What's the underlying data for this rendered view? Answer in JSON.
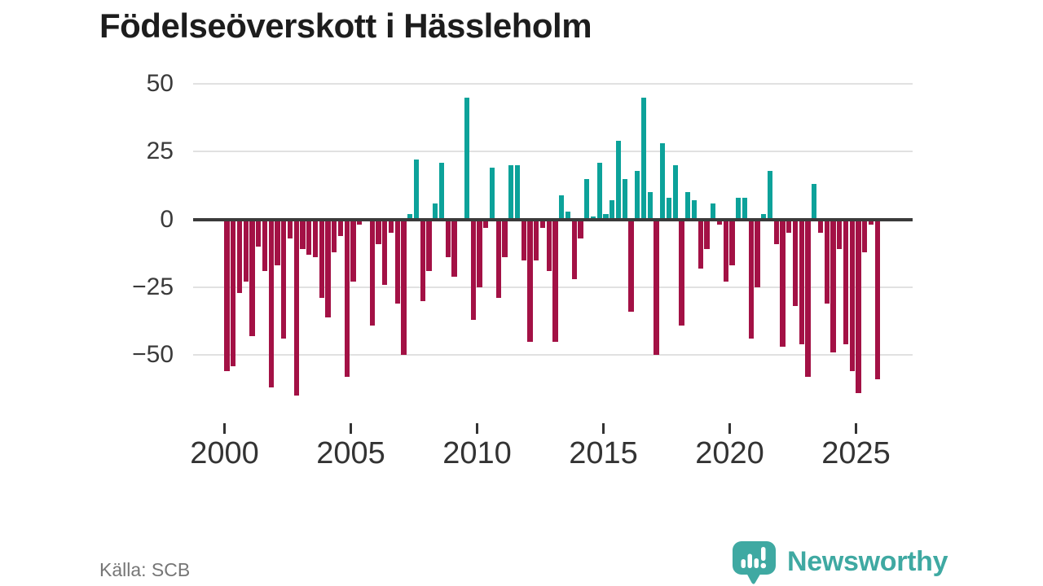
{
  "title": "Födelseöverskott i Hässleholm",
  "source": "Källa: SCB",
  "brand": {
    "name": "Newsworthy",
    "icon": "newsworthy-logo-icon",
    "color": "#3fa9a2"
  },
  "colors": {
    "positive_bar": "#0ca29a",
    "negative_bar": "#a31145",
    "zero_line": "#3b3b3b",
    "gridline": "#e1e1e1",
    "axis_text": "#3a3a3a",
    "year_text": "#333333",
    "title_text": "#1d1d1d",
    "source_text": "#767676"
  },
  "y_axis": {
    "tick_labels": [
      "50",
      "25",
      "0",
      "−25",
      "−50"
    ],
    "tick_values": [
      50,
      25,
      0,
      -25,
      -50
    ]
  },
  "x_axis": {
    "tick_labels": [
      "2000",
      "2005",
      "2010",
      "2015",
      "2020",
      "2025"
    ],
    "tick_years": [
      2000,
      2005,
      2010,
      2015,
      2020,
      2025
    ]
  },
  "chart_data": {
    "type": "bar",
    "title": "Födelseöverskott i Hässleholm",
    "frequency": "quarterly",
    "start_period": "2000-Q1",
    "end_period": "2025-Q4",
    "ylim": [
      -65,
      50
    ],
    "grid": true,
    "legend": false,
    "series": [
      {
        "name": "Födelseöverskott",
        "values": [
          -56,
          -54,
          -27,
          -23,
          -43,
          -10,
          -19,
          -62,
          -17,
          -44,
          -7,
          -65,
          -11,
          -13,
          -14,
          -29,
          -36,
          -12,
          -6,
          -58,
          -23,
          -2,
          0,
          -39,
          -9,
          -24,
          -5,
          -31,
          -50,
          2,
          22,
          -30,
          -19,
          6,
          21,
          -14,
          -21,
          0,
          45,
          -37,
          -25,
          -3,
          19,
          -29,
          -14,
          20,
          20,
          -15,
          -45,
          -15,
          -3,
          -19,
          -45,
          9,
          3,
          -22,
          -7,
          15,
          1,
          21,
          2,
          7,
          29,
          15,
          -34,
          18,
          45,
          10,
          -50,
          28,
          8,
          20,
          -39,
          10,
          7,
          -18,
          -11,
          6,
          -2,
          -23,
          -17,
          8,
          8,
          -44,
          -25,
          2,
          18,
          -9,
          -47,
          -5,
          -32,
          -46,
          -58,
          13,
          -5,
          -31,
          -49,
          -11,
          -46,
          -56,
          -64,
          -12,
          -2,
          -59
        ]
      }
    ]
  }
}
